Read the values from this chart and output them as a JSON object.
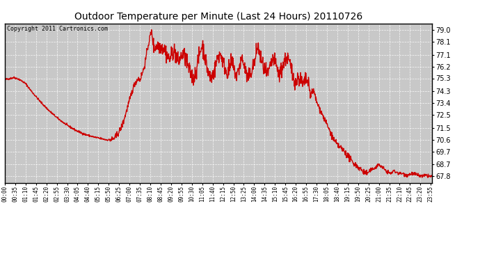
{
  "title": "Outdoor Temperature per Minute (Last 24 Hours) 20110726",
  "copyright": "Copyright 2011 Cartronics.com",
  "line_color": "#cc0000",
  "background_color": "#ffffff",
  "plot_bg_color": "#c8c8c8",
  "grid_color": "#ffffff",
  "yticks": [
    67.8,
    68.7,
    69.7,
    70.6,
    71.5,
    72.5,
    73.4,
    74.3,
    75.3,
    76.2,
    77.1,
    78.1,
    79.0
  ],
  "ylim": [
    67.3,
    79.5
  ],
  "xlim_start": 0,
  "xlim_end": 1439,
  "xtick_labels": [
    "00:00",
    "00:35",
    "01:10",
    "01:45",
    "02:20",
    "02:55",
    "03:30",
    "04:05",
    "04:40",
    "05:15",
    "05:50",
    "06:25",
    "07:00",
    "07:35",
    "08:10",
    "08:45",
    "09:20",
    "09:55",
    "10:30",
    "11:05",
    "11:40",
    "12:15",
    "12:50",
    "13:25",
    "14:00",
    "14:35",
    "15:10",
    "15:45",
    "16:20",
    "16:55",
    "17:30",
    "18:05",
    "18:40",
    "19:15",
    "19:50",
    "20:25",
    "21:00",
    "21:35",
    "22:10",
    "22:45",
    "23:20",
    "23:55"
  ],
  "xtick_positions": [
    0,
    35,
    70,
    105,
    140,
    175,
    210,
    245,
    280,
    315,
    350,
    385,
    420,
    455,
    490,
    525,
    560,
    595,
    630,
    665,
    700,
    735,
    770,
    805,
    840,
    875,
    910,
    945,
    980,
    1015,
    1050,
    1085,
    1120,
    1155,
    1190,
    1225,
    1260,
    1295,
    1330,
    1365,
    1400,
    1435
  ],
  "line_width": 1.0,
  "figsize": [
    6.9,
    3.75
  ],
  "dpi": 100
}
